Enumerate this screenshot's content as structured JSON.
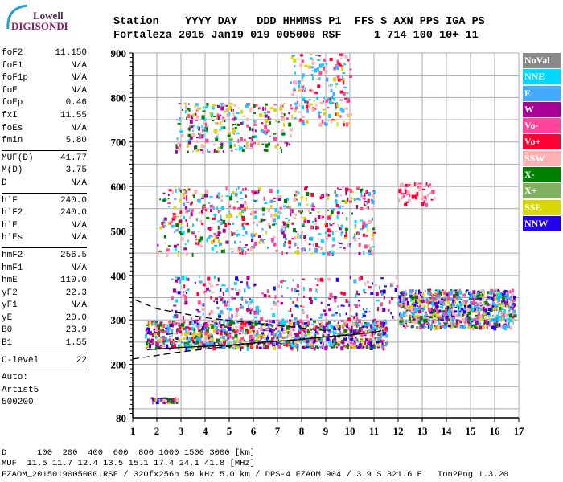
{
  "logo": {
    "line1": "Lowell",
    "line2": "DIGISONDE"
  },
  "header": {
    "labels": "Station    YYYY DAY   DDD HHMMSS P1  FFS S AXN PPS IGA PS",
    "values": "Fortaleza 2015 Jan19 019 005000 RSF     1 714 100 10+ 11"
  },
  "params": {
    "group1": [
      [
        "foF2",
        "11.150"
      ],
      [
        "foF1",
        "N/A"
      ],
      [
        "foF1p",
        "N/A"
      ],
      [
        "foE",
        "N/A"
      ],
      [
        "foEp",
        "0.46"
      ],
      [
        "fxI",
        "11.55"
      ],
      [
        "foEs",
        "N/A"
      ],
      [
        "fmin",
        "5.80"
      ]
    ],
    "group2": [
      [
        "MUF(D)",
        "41.77"
      ],
      [
        "M(D)",
        "3.75"
      ],
      [
        "D",
        "N/A"
      ]
    ],
    "group3": [
      [
        "h`F",
        "240.0"
      ],
      [
        "h`F2",
        "240.0"
      ],
      [
        "h`E",
        "N/A"
      ],
      [
        "h`Es",
        "N/A"
      ]
    ],
    "group4": [
      [
        "hmF2",
        "256.5"
      ],
      [
        "hmF1",
        "N/A"
      ],
      [
        "hmE",
        "110.0"
      ],
      [
        "yF2",
        "22.3"
      ],
      [
        "yF1",
        "N/A"
      ],
      [
        "yE",
        "20.0"
      ],
      [
        "B0",
        "23.9"
      ],
      [
        "B1",
        "1.55"
      ]
    ],
    "group5": [
      [
        "C-level",
        "22"
      ]
    ],
    "auto": [
      "Auto:",
      "Artist5",
      "500200"
    ]
  },
  "legend": [
    {
      "label": "NoVal",
      "color": "#888888"
    },
    {
      "label": "NNE",
      "color": "#00d8ff"
    },
    {
      "label": "E",
      "color": "#44aaff"
    },
    {
      "label": "W",
      "color": "#aa0099"
    },
    {
      "label": "Vo-",
      "color": "#ff4499"
    },
    {
      "label": "Vo+",
      "color": "#ff0033"
    },
    {
      "label": "SSW",
      "color": "#ffb0b0"
    },
    {
      "label": "X-",
      "color": "#008000"
    },
    {
      "label": "X+",
      "color": "#80b060"
    },
    {
      "label": "SSE",
      "color": "#d8d800"
    },
    {
      "label": "NNW",
      "color": "#2200ee"
    }
  ],
  "footer": {
    "line1": "D      100  200  400  600  800 1000 1500 3000 [km]",
    "line2": "MUF  11.5 11.7 12.4 13.5 15.1 17.4 24.1 41.8 [MHz]",
    "line3": "FZAOM_2015019005000.RSF / 320fx256h 50 kHz 5.0 km / DPS-4 FZAOM 904 / 3.9 S 321.6 E   Ion2Png 1.3.20"
  },
  "chart_data": {
    "type": "scatter",
    "xlim": [
      1,
      17
    ],
    "ylim": [
      80,
      900
    ],
    "xticks": [
      "1",
      "2",
      "3",
      "4",
      "5",
      "6",
      "7",
      "8",
      "9",
      "10",
      "11",
      "12",
      "13",
      "14",
      "15",
      "16",
      "17"
    ],
    "yticks": [
      {
        "v": 900,
        "t": "900"
      },
      {
        "v": 800,
        "t": "800"
      },
      {
        "v": 700,
        "t": "700"
      },
      {
        "v": 600,
        "t": "600"
      },
      {
        "v": 500,
        "t": "500"
      },
      {
        "v": 400,
        "t": "400"
      },
      {
        "v": 300,
        "t": "300"
      },
      {
        "v": 200,
        "t": "200"
      },
      {
        "v": 80,
        "t": "80"
      }
    ],
    "grid": true,
    "echo_clusters": [
      {
        "f": [
          1.7,
          2.8
        ],
        "h": [
          118,
          126
        ],
        "n": 60,
        "colors": [
          5,
          8,
          7,
          4,
          11,
          10
        ]
      },
      {
        "f": [
          1.5,
          11.5
        ],
        "h": [
          238,
          300
        ],
        "n": 1100,
        "colors": [
          3,
          5,
          4,
          2,
          8,
          7,
          6,
          11,
          10
        ]
      },
      {
        "f": [
          2.5,
          12
        ],
        "h": [
          300,
          400
        ],
        "n": 300,
        "colors": [
          4,
          3,
          5,
          2,
          7,
          6,
          11
        ]
      },
      {
        "f": [
          12,
          16.8
        ],
        "h": [
          285,
          370
        ],
        "n": 900,
        "colors": [
          11,
          3,
          2,
          5,
          8,
          10,
          4,
          7
        ]
      },
      {
        "f": [
          2,
          11
        ],
        "h": [
          450,
          600
        ],
        "n": 600,
        "colors": [
          5,
          4,
          6,
          3,
          7,
          8,
          10,
          2
        ]
      },
      {
        "f": [
          12,
          13.5
        ],
        "h": [
          560,
          610
        ],
        "n": 60,
        "colors": [
          6,
          5,
          7
        ]
      },
      {
        "f": [
          2.7,
          7.5
        ],
        "h": [
          680,
          790
        ],
        "n": 300,
        "colors": [
          10,
          7,
          5,
          4,
          2,
          8
        ]
      },
      {
        "f": [
          7.5,
          10
        ],
        "h": [
          740,
          900
        ],
        "n": 200,
        "colors": [
          3,
          2,
          5,
          7,
          6,
          10
        ]
      }
    ],
    "o_trace": [
      [
        1.6,
        233
      ],
      [
        3,
        238
      ],
      [
        5,
        243
      ],
      [
        6,
        248
      ],
      [
        7,
        252
      ],
      [
        8,
        256
      ],
      [
        9,
        262
      ],
      [
        10,
        266
      ],
      [
        11,
        272
      ],
      [
        11.3,
        276
      ]
    ],
    "model_lower": [
      [
        1,
        212
      ],
      [
        3,
        228
      ],
      [
        6,
        247
      ],
      [
        9,
        262
      ],
      [
        11,
        272
      ]
    ],
    "model_upper": [
      [
        1.1,
        345
      ],
      [
        2,
        325
      ],
      [
        4,
        305
      ],
      [
        6,
        293
      ],
      [
        8,
        282
      ],
      [
        9,
        276
      ]
    ]
  }
}
